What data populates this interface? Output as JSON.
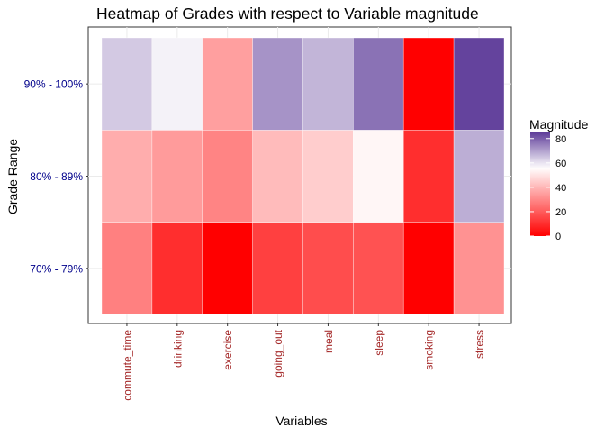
{
  "chart_data": {
    "type": "heatmap",
    "title": "Heatmap of Grades with respect to Variable magnitude",
    "xlabel": "Variables",
    "ylabel": "Grade Range",
    "x_categories": [
      "commute_time",
      "drinking",
      "exercise",
      "going_out",
      "meal",
      "sleep",
      "smoking",
      "stress"
    ],
    "y_categories": [
      "70% - 79%",
      "80% - 89%",
      "90% - 100%"
    ],
    "values": [
      [
        28,
        10,
        0,
        14,
        17,
        18,
        0,
        32
      ],
      [
        38,
        34,
        29,
        41,
        45,
        54,
        10,
        68
      ],
      [
        64,
        58,
        35,
        72,
        67,
        77,
        0,
        84
      ]
    ],
    "legend": {
      "title": "Magnitude",
      "ticks": [
        0,
        20,
        40,
        60,
        80
      ],
      "range": [
        0,
        85
      ],
      "placement": "right"
    },
    "colors": {
      "low": "#FF0000",
      "mid": "#FFFFFF",
      "high": "#5E3C99",
      "y_tick_label": "#00008B",
      "x_tick_label": "#A52A2A"
    },
    "color_midpoint": 56,
    "grid": true
  }
}
